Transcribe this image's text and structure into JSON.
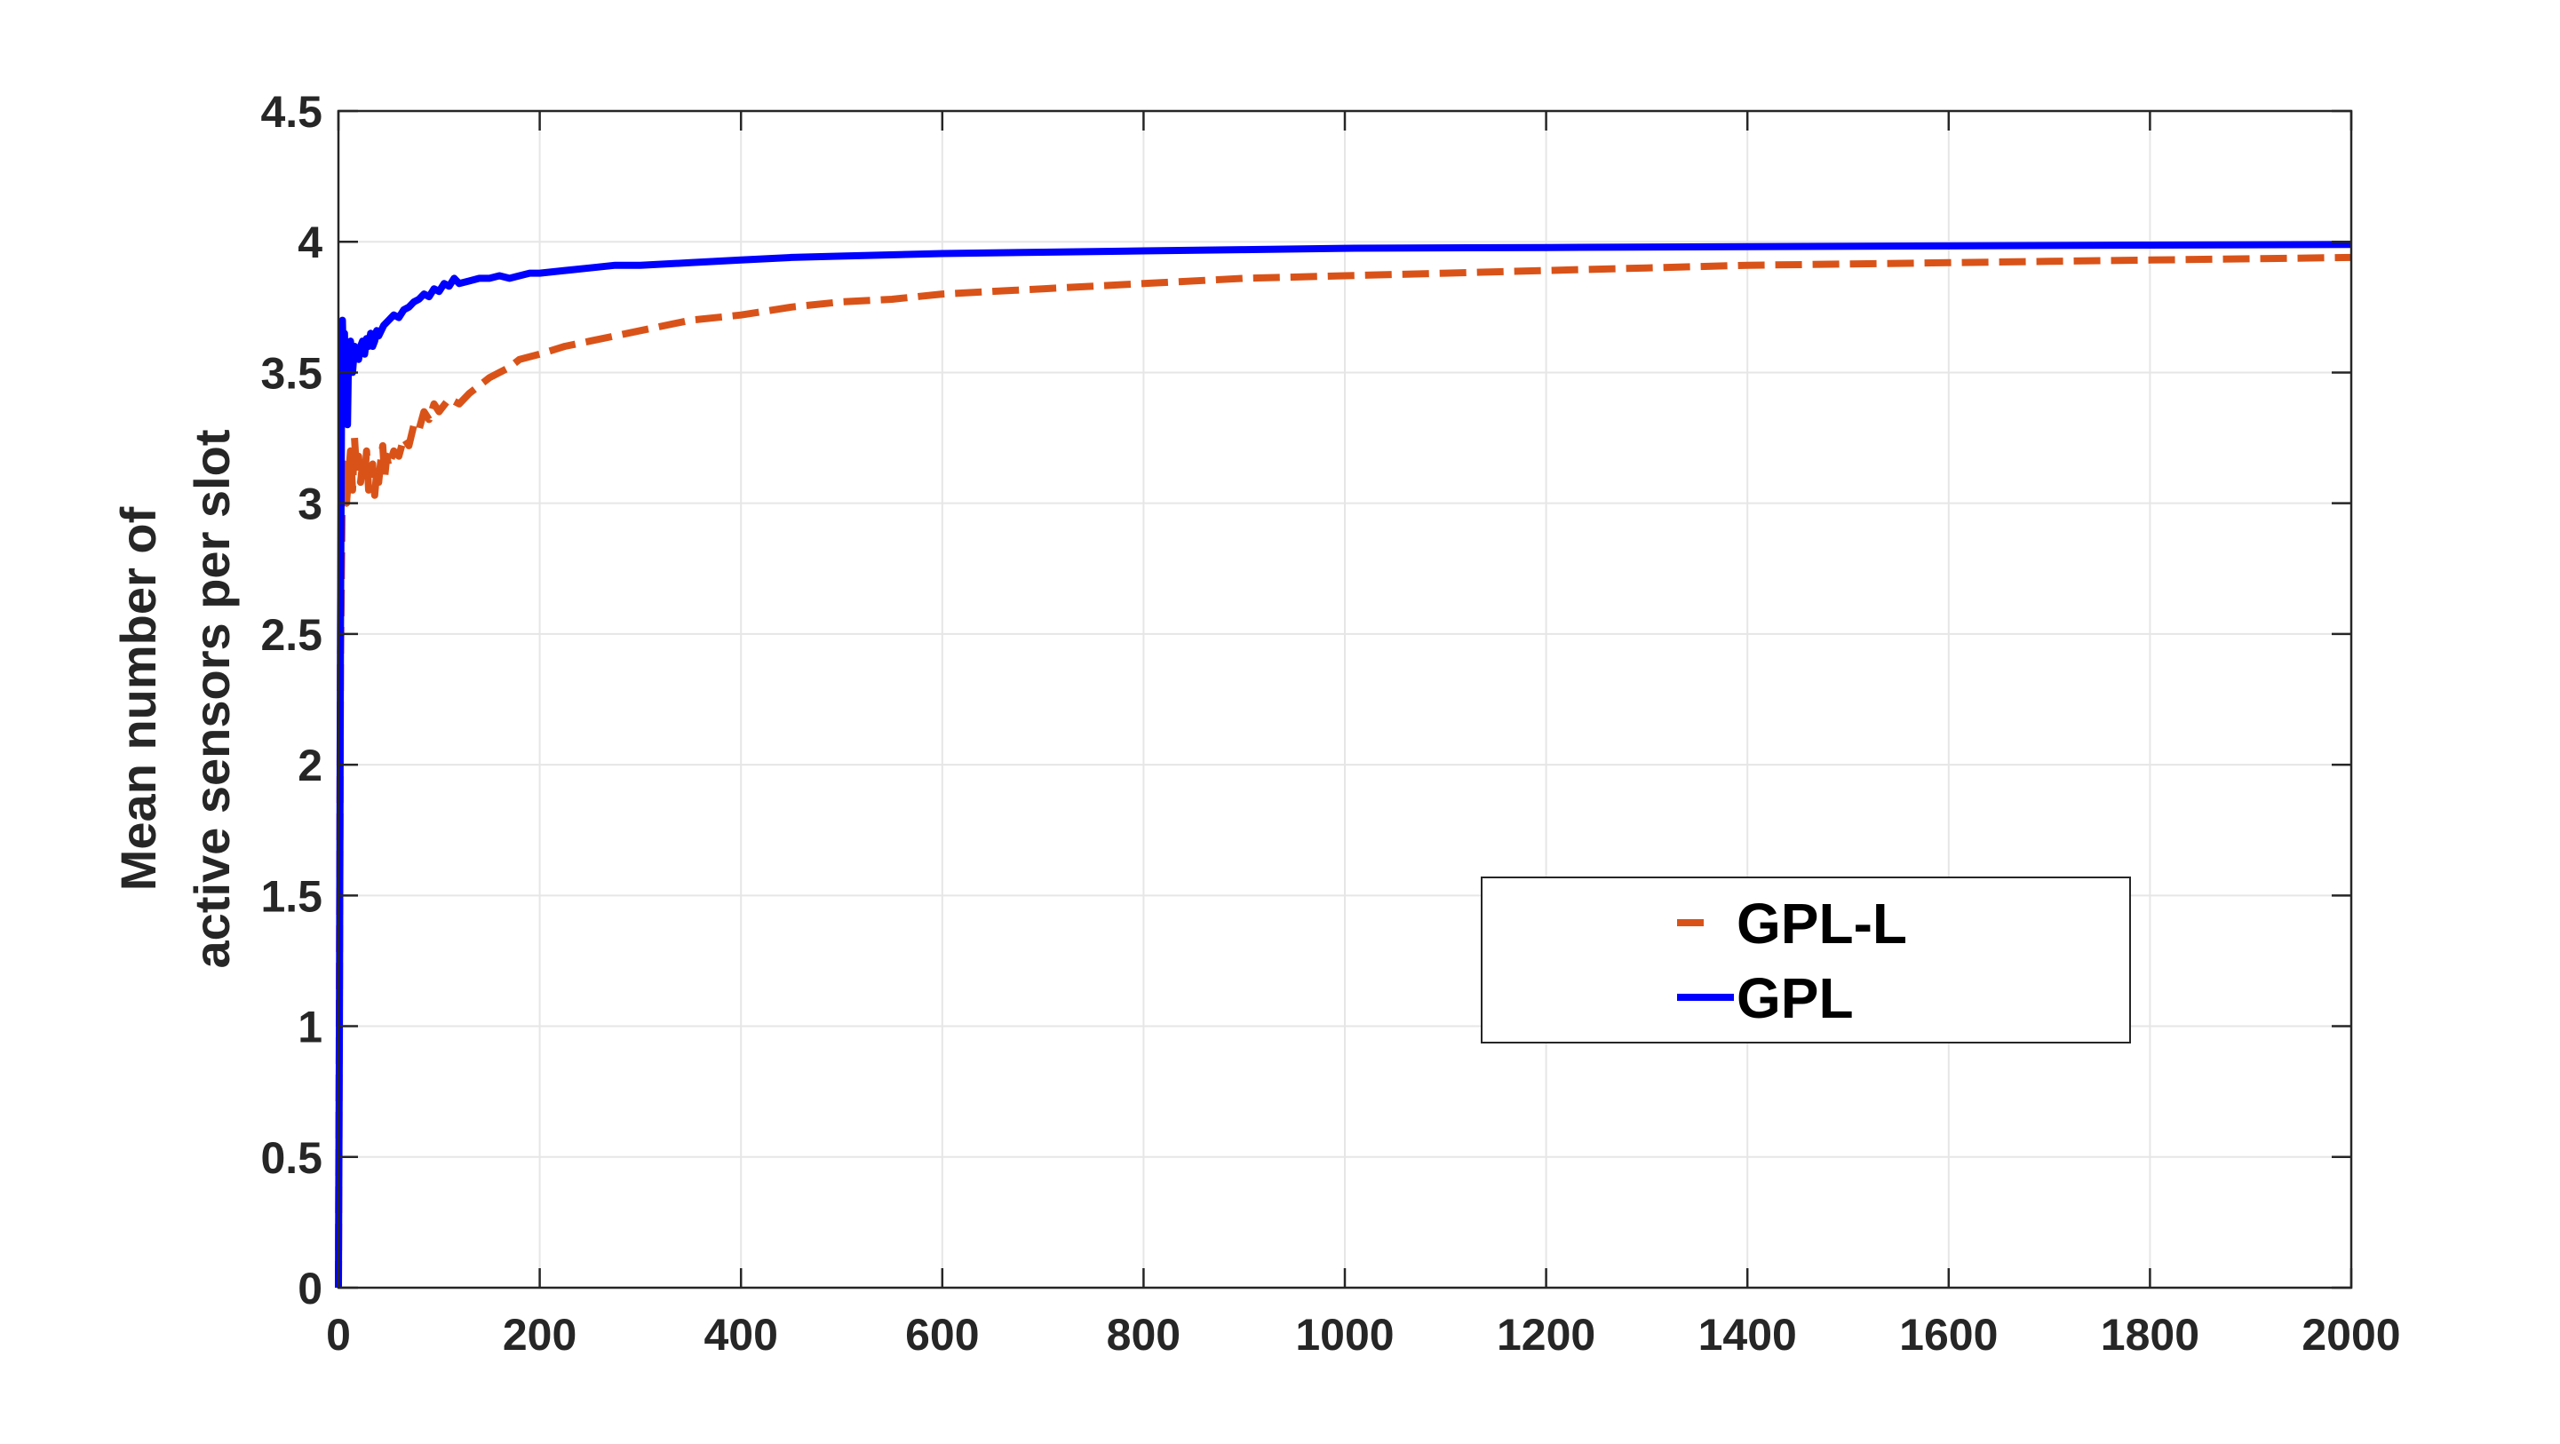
{
  "chart_data": {
    "type": "line",
    "title": "",
    "xlabel": "",
    "ylabel_lines": [
      "Mean number of",
      "active sensors per slot"
    ],
    "xlim": [
      0,
      2000
    ],
    "ylim": [
      0,
      4.5
    ],
    "grid": true,
    "legend_position": "center-right",
    "x_ticks": [
      0,
      200,
      400,
      600,
      800,
      1000,
      1200,
      1400,
      1600,
      1800,
      2000
    ],
    "x_tick_labels": [
      "0",
      "200",
      "400",
      "600",
      "800",
      "1000",
      "1200",
      "1400",
      "1600",
      "1800",
      "2000"
    ],
    "y_ticks": [
      0,
      0.5,
      1,
      1.5,
      2,
      2.5,
      3,
      3.5,
      4,
      4.5
    ],
    "y_tick_labels": [
      "0",
      "0.5",
      "1",
      "1.5",
      "2",
      "2.5",
      "3",
      "3.5",
      "4",
      "4.5"
    ],
    "series": [
      {
        "name": "GPL-L",
        "color": "#D95319",
        "style": "dashed",
        "x": [
          0,
          2,
          4,
          6,
          8,
          10,
          12,
          14,
          16,
          18,
          20,
          22,
          24,
          26,
          28,
          30,
          32,
          34,
          36,
          38,
          40,
          42,
          44,
          46,
          48,
          50,
          55,
          60,
          65,
          70,
          75,
          80,
          85,
          90,
          95,
          100,
          110,
          120,
          130,
          140,
          150,
          160,
          170,
          180,
          190,
          200,
          225,
          250,
          275,
          300,
          350,
          400,
          450,
          500,
          550,
          600,
          700,
          800,
          900,
          1000,
          1100,
          1200,
          1300,
          1400,
          1500,
          1600,
          1700,
          1800,
          1900,
          2000
        ],
        "y": [
          0,
          2.4,
          3.05,
          3.15,
          3.0,
          3.1,
          3.2,
          3.05,
          3.25,
          3.12,
          3.18,
          3.08,
          3.15,
          3.1,
          3.2,
          3.05,
          3.1,
          3.15,
          3.03,
          3.12,
          3.08,
          3.16,
          3.22,
          3.1,
          3.18,
          3.14,
          3.2,
          3.18,
          3.25,
          3.22,
          3.3,
          3.28,
          3.35,
          3.32,
          3.38,
          3.35,
          3.4,
          3.38,
          3.42,
          3.45,
          3.48,
          3.5,
          3.52,
          3.55,
          3.56,
          3.57,
          3.6,
          3.62,
          3.64,
          3.66,
          3.7,
          3.72,
          3.75,
          3.77,
          3.78,
          3.8,
          3.82,
          3.84,
          3.86,
          3.87,
          3.88,
          3.89,
          3.9,
          3.91,
          3.915,
          3.92,
          3.925,
          3.93,
          3.935,
          3.94
        ]
      },
      {
        "name": "GPL",
        "color": "#0000FF",
        "style": "solid",
        "x": [
          0,
          1,
          2,
          3,
          4,
          5,
          6,
          7,
          8,
          9,
          10,
          12,
          14,
          16,
          18,
          20,
          22,
          24,
          26,
          28,
          30,
          32,
          34,
          36,
          38,
          40,
          45,
          50,
          55,
          60,
          65,
          70,
          75,
          80,
          85,
          90,
          95,
          100,
          105,
          110,
          115,
          120,
          130,
          140,
          150,
          160,
          170,
          180,
          190,
          200,
          225,
          250,
          275,
          300,
          350,
          400,
          450,
          500,
          600,
          700,
          800,
          900,
          1000,
          1200,
          1400,
          1600,
          1800,
          2000
        ],
        "y": [
          0,
          1.0,
          2.5,
          3.3,
          3.7,
          3.5,
          3.65,
          3.45,
          3.6,
          3.3,
          3.55,
          3.62,
          3.5,
          3.6,
          3.58,
          3.55,
          3.6,
          3.62,
          3.57,
          3.63,
          3.6,
          3.65,
          3.6,
          3.62,
          3.66,
          3.64,
          3.68,
          3.7,
          3.72,
          3.71,
          3.74,
          3.75,
          3.77,
          3.78,
          3.8,
          3.79,
          3.82,
          3.81,
          3.84,
          3.83,
          3.86,
          3.84,
          3.85,
          3.86,
          3.86,
          3.87,
          3.86,
          3.87,
          3.88,
          3.88,
          3.89,
          3.9,
          3.91,
          3.91,
          3.92,
          3.93,
          3.94,
          3.945,
          3.955,
          3.96,
          3.965,
          3.97,
          3.975,
          3.978,
          3.981,
          3.984,
          3.987,
          3.99
        ]
      }
    ]
  }
}
